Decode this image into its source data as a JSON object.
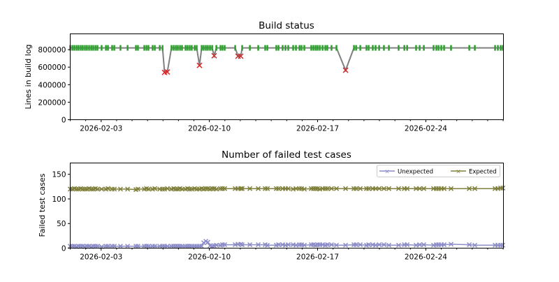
{
  "chart_data": [
    {
      "type": "line",
      "title": "Build status",
      "xlabel": "",
      "ylabel": "Lines in build log",
      "x_unit": "days since 2026-02-01",
      "xlim": [
        0,
        28.02
      ],
      "ylim": [
        0,
        980000
      ],
      "yticks": [
        0,
        200000,
        400000,
        600000,
        800000
      ],
      "ytick_labels": [
        "0",
        "200000",
        "400000",
        "600000",
        "800000"
      ],
      "xticks": [
        2,
        9,
        16,
        23
      ],
      "xtick_labels": [
        "2026-02-03",
        "2026-02-10",
        "2026-02-17",
        "2026-02-24"
      ],
      "colors": {
        "line": "#808080",
        "success": "#2ca02c",
        "failure": "#d62728"
      },
      "series_note": "green = successful build, red x = failed build"
    },
    {
      "type": "line",
      "title": "Number of failed test cases",
      "xlabel": "",
      "ylabel": "Failed test cases",
      "xlim": [
        0,
        28.02
      ],
      "ylim": [
        0,
        173
      ],
      "yticks": [
        0,
        50,
        100,
        150
      ],
      "ytick_labels": [
        "0",
        "50",
        "100",
        "150"
      ],
      "xticks": [
        2,
        9,
        16,
        23
      ],
      "xtick_labels": [
        "2026-02-03",
        "2026-02-10",
        "2026-02-17",
        "2026-02-24"
      ],
      "legend": [
        "Unexpected",
        "Expected"
      ],
      "legend_position": "top-right",
      "colors": {
        "Unexpected": "#8c8cc8",
        "Expected": "#80803c"
      }
    }
  ],
  "builds_columns": [
    "t_days",
    "lines",
    "failed",
    "unexpected",
    "expected"
  ],
  "builds": [
    [
      0.0,
      820000,
      0,
      4,
      120
    ],
    [
      0.14,
      820000,
      0,
      4,
      120
    ],
    [
      0.27,
      820000,
      0,
      4,
      121
    ],
    [
      0.41,
      820000,
      0,
      3,
      120
    ],
    [
      0.54,
      820000,
      0,
      4,
      120
    ],
    [
      0.68,
      820000,
      0,
      4,
      121
    ],
    [
      0.81,
      820000,
      0,
      4,
      120
    ],
    [
      0.95,
      820000,
      0,
      3,
      120
    ],
    [
      1.08,
      820000,
      0,
      4,
      120
    ],
    [
      1.22,
      820000,
      0,
      4,
      121
    ],
    [
      1.36,
      820000,
      0,
      3,
      120
    ],
    [
      1.49,
      820000,
      0,
      4,
      120
    ],
    [
      1.63,
      820000,
      0,
      4,
      121
    ],
    [
      1.76,
      820000,
      0,
      4,
      120
    ],
    [
      2.03,
      820000,
      0,
      3,
      120
    ],
    [
      2.31,
      820000,
      0,
      4,
      120
    ],
    [
      2.44,
      820000,
      0,
      4,
      121
    ],
    [
      2.71,
      820000,
      0,
      4,
      120
    ],
    [
      2.85,
      820000,
      0,
      4,
      120
    ],
    [
      3.25,
      820000,
      0,
      4,
      120
    ],
    [
      3.71,
      820000,
      0,
      4,
      120
    ],
    [
      4.25,
      820000,
      0,
      4,
      119
    ],
    [
      4.38,
      820000,
      0,
      4,
      120
    ],
    [
      4.79,
      820000,
      0,
      4,
      120
    ],
    [
      4.93,
      820000,
      0,
      4,
      121
    ],
    [
      5.06,
      820000,
      0,
      4,
      120
    ],
    [
      5.33,
      820000,
      0,
      4,
      120
    ],
    [
      5.47,
      820000,
      0,
      4,
      121
    ],
    [
      5.79,
      820000,
      0,
      4,
      120
    ],
    [
      5.97,
      820000,
      0,
      4,
      120
    ],
    [
      6.1,
      540000,
      1,
      4,
      120
    ],
    [
      6.28,
      545000,
      1,
      4,
      121
    ],
    [
      6.55,
      820000,
      0,
      4,
      120
    ],
    [
      6.69,
      820000,
      0,
      4,
      121
    ],
    [
      6.83,
      820000,
      0,
      4,
      120
    ],
    [
      6.96,
      820000,
      0,
      4,
      120
    ],
    [
      7.1,
      820000,
      0,
      4,
      121
    ],
    [
      7.23,
      820000,
      0,
      4,
      120
    ],
    [
      7.46,
      820000,
      0,
      4,
      120
    ],
    [
      7.59,
      820000,
      0,
      4,
      121
    ],
    [
      7.73,
      820000,
      0,
      4,
      120
    ],
    [
      7.86,
      820000,
      0,
      4,
      120
    ],
    [
      8.05,
      820000,
      0,
      4,
      121
    ],
    [
      8.18,
      820000,
      0,
      4,
      120
    ],
    [
      8.36,
      620000,
      1,
      4,
      120
    ],
    [
      8.5,
      820000,
      0,
      4,
      121
    ],
    [
      8.63,
      820000,
      0,
      11,
      120
    ],
    [
      8.77,
      820000,
      0,
      14,
      121
    ],
    [
      8.9,
      820000,
      0,
      12,
      121
    ],
    [
      9.04,
      820000,
      0,
      5,
      120
    ],
    [
      9.18,
      820000,
      0,
      4,
      121
    ],
    [
      9.31,
      730000,
      1,
      5,
      121
    ],
    [
      9.45,
      820000,
      0,
      6,
      120
    ],
    [
      9.72,
      820000,
      0,
      6,
      121
    ],
    [
      9.85,
      820000,
      0,
      7,
      121
    ],
    [
      9.99,
      820000,
      0,
      7,
      121
    ],
    [
      10.67,
      820000,
      0,
      7,
      121
    ],
    [
      10.85,
      725000,
      1,
      8,
      121
    ],
    [
      11.03,
      725000,
      1,
      8,
      121
    ],
    [
      11.12,
      820000,
      0,
      7,
      121
    ],
    [
      11.62,
      820000,
      0,
      7,
      121
    ],
    [
      12.16,
      820000,
      0,
      7,
      121
    ],
    [
      12.61,
      820000,
      0,
      7,
      121
    ],
    [
      12.75,
      820000,
      0,
      6,
      121
    ],
    [
      13.33,
      820000,
      0,
      6,
      121
    ],
    [
      13.47,
      820000,
      0,
      7,
      121
    ],
    [
      13.74,
      820000,
      0,
      7,
      121
    ],
    [
      13.92,
      820000,
      0,
      6,
      121
    ],
    [
      14.1,
      820000,
      0,
      7,
      121
    ],
    [
      14.42,
      820000,
      0,
      7,
      120
    ],
    [
      14.6,
      820000,
      0,
      6,
      121
    ],
    [
      14.83,
      820000,
      0,
      7,
      121
    ],
    [
      14.96,
      820000,
      0,
      7,
      121
    ],
    [
      15.14,
      820000,
      0,
      6,
      120
    ],
    [
      15.59,
      820000,
      0,
      7,
      121
    ],
    [
      15.73,
      820000,
      0,
      7,
      121
    ],
    [
      15.87,
      820000,
      0,
      6,
      121
    ],
    [
      16.0,
      820000,
      0,
      7,
      121
    ],
    [
      16.14,
      820000,
      0,
      7,
      120
    ],
    [
      16.32,
      820000,
      0,
      7,
      121
    ],
    [
      16.5,
      820000,
      0,
      6,
      121
    ],
    [
      16.63,
      820000,
      0,
      7,
      121
    ],
    [
      16.9,
      820000,
      0,
      7,
      121
    ],
    [
      17.22,
      820000,
      0,
      6,
      121
    ],
    [
      17.81,
      565000,
      1,
      6,
      121
    ],
    [
      18.35,
      820000,
      0,
      7,
      121
    ],
    [
      18.49,
      820000,
      0,
      7,
      121
    ],
    [
      18.76,
      820000,
      0,
      7,
      121
    ],
    [
      19.16,
      820000,
      0,
      6,
      121
    ],
    [
      19.3,
      820000,
      0,
      7,
      121
    ],
    [
      19.57,
      820000,
      0,
      7,
      121
    ],
    [
      19.75,
      820000,
      0,
      6,
      121
    ],
    [
      19.98,
      820000,
      0,
      7,
      121
    ],
    [
      20.29,
      820000,
      0,
      7,
      121
    ],
    [
      20.61,
      820000,
      0,
      6,
      121
    ],
    [
      21.24,
      820000,
      0,
      6,
      121
    ],
    [
      21.61,
      820000,
      0,
      7,
      121
    ],
    [
      21.79,
      820000,
      0,
      7,
      121
    ],
    [
      22.37,
      820000,
      0,
      6,
      121
    ],
    [
      22.6,
      820000,
      0,
      7,
      121
    ],
    [
      22.87,
      820000,
      0,
      7,
      121
    ],
    [
      23.5,
      820000,
      0,
      6,
      121
    ],
    [
      23.68,
      820000,
      0,
      7,
      121
    ],
    [
      23.82,
      820000,
      0,
      7,
      121
    ],
    [
      24.0,
      820000,
      0,
      7,
      121
    ],
    [
      24.18,
      820000,
      0,
      7,
      121
    ],
    [
      24.63,
      820000,
      0,
      8,
      121
    ],
    [
      25.81,
      820000,
      0,
      7,
      121
    ],
    [
      26.17,
      820000,
      0,
      6,
      121
    ],
    [
      27.48,
      820000,
      0,
      6,
      121
    ],
    [
      27.66,
      820000,
      0,
      6,
      121
    ],
    [
      27.84,
      820000,
      0,
      6,
      122
    ],
    [
      27.98,
      820000,
      0,
      6,
      122
    ]
  ]
}
